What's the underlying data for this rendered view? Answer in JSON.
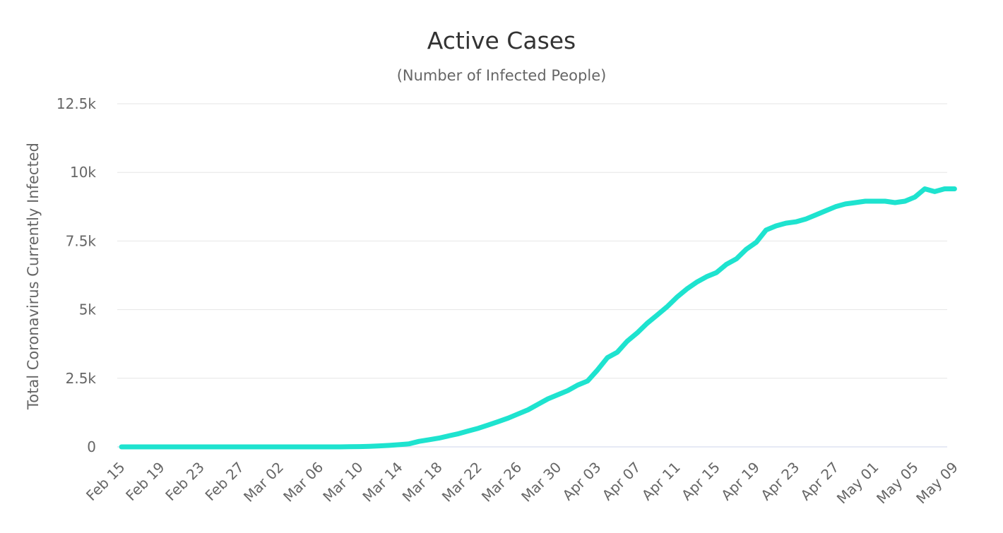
{
  "chart_data": {
    "type": "line",
    "title": "Active Cases",
    "subtitle": "(Number of Infected People)",
    "xlabel": "",
    "ylabel": "Total Coronavirus Currently Infected",
    "ylim": [
      0,
      12500
    ],
    "y_ticks": [
      0,
      2500,
      5000,
      7500,
      10000,
      12500
    ],
    "y_tick_labels": [
      "0",
      "2.5k",
      "5k",
      "7.5k",
      "10k",
      "12.5k"
    ],
    "x_tick_labels": [
      "Feb 15",
      "Feb 19",
      "Feb 23",
      "Feb 27",
      "Mar 02",
      "Mar 06",
      "Mar 10",
      "Mar 14",
      "Mar 18",
      "Mar 22",
      "Mar 26",
      "Mar 30",
      "Apr 03",
      "Apr 07",
      "Apr 11",
      "Apr 15",
      "Apr 19",
      "Apr 23",
      "Apr 27",
      "May 01",
      "May 05",
      "May 09"
    ],
    "grid": true,
    "legend": "none",
    "line_color": "#1ee3cf",
    "series": [
      {
        "x": [
          "Feb 15",
          "Feb 16",
          "Feb 17",
          "Feb 18",
          "Feb 19",
          "Feb 20",
          "Feb 21",
          "Feb 22",
          "Feb 23",
          "Feb 24",
          "Feb 25",
          "Feb 26",
          "Feb 27",
          "Feb 28",
          "Feb 29",
          "Mar 01",
          "Mar 02",
          "Mar 03",
          "Mar 04",
          "Mar 05",
          "Mar 06",
          "Mar 07",
          "Mar 08",
          "Mar 09",
          "Mar 10",
          "Mar 11",
          "Mar 12",
          "Mar 13",
          "Mar 14",
          "Mar 15",
          "Mar 16",
          "Mar 17",
          "Mar 18",
          "Mar 19",
          "Mar 20",
          "Mar 21",
          "Mar 22",
          "Mar 23",
          "Mar 24",
          "Mar 25",
          "Mar 26",
          "Mar 27",
          "Mar 28",
          "Mar 29",
          "Mar 30",
          "Mar 31",
          "Apr 01",
          "Apr 02",
          "Apr 03",
          "Apr 04",
          "Apr 05",
          "Apr 06",
          "Apr 07",
          "Apr 08",
          "Apr 09",
          "Apr 10",
          "Apr 11",
          "Apr 12",
          "Apr 13",
          "Apr 14",
          "Apr 15",
          "Apr 16",
          "Apr 17",
          "Apr 18",
          "Apr 19",
          "Apr 20",
          "Apr 21",
          "Apr 22",
          "Apr 23",
          "Apr 24",
          "Apr 25",
          "Apr 26",
          "Apr 27",
          "Apr 28",
          "Apr 29",
          "Apr 30",
          "May 01",
          "May 02",
          "May 03",
          "May 04",
          "May 05",
          "May 06",
          "May 07",
          "May 08",
          "May 09"
        ],
        "values": [
          0,
          0,
          0,
          0,
          0,
          0,
          0,
          0,
          0,
          0,
          0,
          0,
          0,
          0,
          0,
          0,
          0,
          0,
          0,
          0,
          0,
          0,
          0,
          5,
          10,
          20,
          35,
          55,
          80,
          110,
          200,
          260,
          320,
          400,
          480,
          580,
          680,
          800,
          920,
          1050,
          1200,
          1350,
          1550,
          1750,
          1900,
          2050,
          2250,
          2400,
          2800,
          3250,
          3450,
          3850,
          4150,
          4500,
          4800,
          5100,
          5450,
          5750,
          6000,
          6200,
          6350,
          6650,
          6850,
          7200,
          7450,
          7900,
          8050,
          8150,
          8200,
          8300,
          8450,
          8600,
          8750,
          8850,
          8900,
          8950,
          8950,
          8950,
          8900,
          8950,
          9100,
          9400,
          9300,
          9400,
          9400
        ]
      }
    ]
  }
}
